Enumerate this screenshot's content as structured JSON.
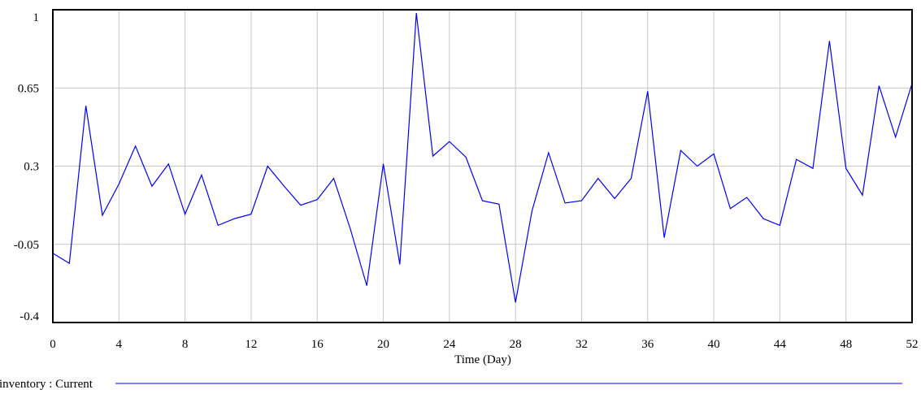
{
  "chart_data": {
    "type": "line",
    "xlabel": "Time (Day)",
    "ylabel": "",
    "xlim": [
      0,
      52
    ],
    "ylim": [
      -0.4,
      1.0
    ],
    "x_ticks": [
      0,
      4,
      8,
      12,
      16,
      20,
      24,
      28,
      32,
      36,
      40,
      44,
      48,
      52
    ],
    "x_tick_labels": [
      "0",
      "4",
      "8",
      "12",
      "16",
      "20",
      "24",
      "28",
      "32",
      "36",
      "40",
      "44",
      "48",
      "52"
    ],
    "y_ticks": [
      -0.4,
      -0.05,
      0.3,
      0.65,
      1.0
    ],
    "y_tick_labels": [
      "-0.4",
      "-0.05",
      "0.3",
      "0.65",
      "1"
    ],
    "grid": true,
    "legend_placement": "bottom",
    "series": [
      {
        "name": "inventory : Current",
        "color": "#0000ff",
        "x": [
          0,
          1,
          2,
          3,
          4,
          5,
          6,
          7,
          8,
          9,
          10,
          11,
          12,
          13,
          14,
          15,
          16,
          17,
          18,
          19,
          20,
          21,
          22,
          23,
          24,
          25,
          26,
          27,
          28,
          29,
          30,
          31,
          32,
          33,
          34,
          35,
          36,
          37,
          38,
          39,
          40,
          41,
          42,
          43,
          44,
          45,
          46,
          47,
          48,
          49,
          50,
          51,
          52
        ],
        "values": [
          -0.09,
          -0.135,
          0.57,
          0.08,
          0.22,
          0.39,
          0.21,
          0.31,
          0.085,
          0.26,
          0.035,
          0.065,
          0.085,
          0.3,
          0.21,
          0.125,
          0.15,
          0.245,
          0.02,
          -0.235,
          0.31,
          -0.14,
          0.985,
          0.345,
          0.41,
          0.34,
          0.145,
          0.13,
          -0.31,
          0.1,
          0.36,
          0.135,
          0.145,
          0.245,
          0.155,
          0.245,
          0.635,
          -0.02,
          0.37,
          0.3,
          0.355,
          0.11,
          0.16,
          0.065,
          0.035,
          0.33,
          0.29,
          0.86,
          0.29,
          0.17,
          0.66,
          0.43,
          0.67
        ]
      }
    ]
  }
}
